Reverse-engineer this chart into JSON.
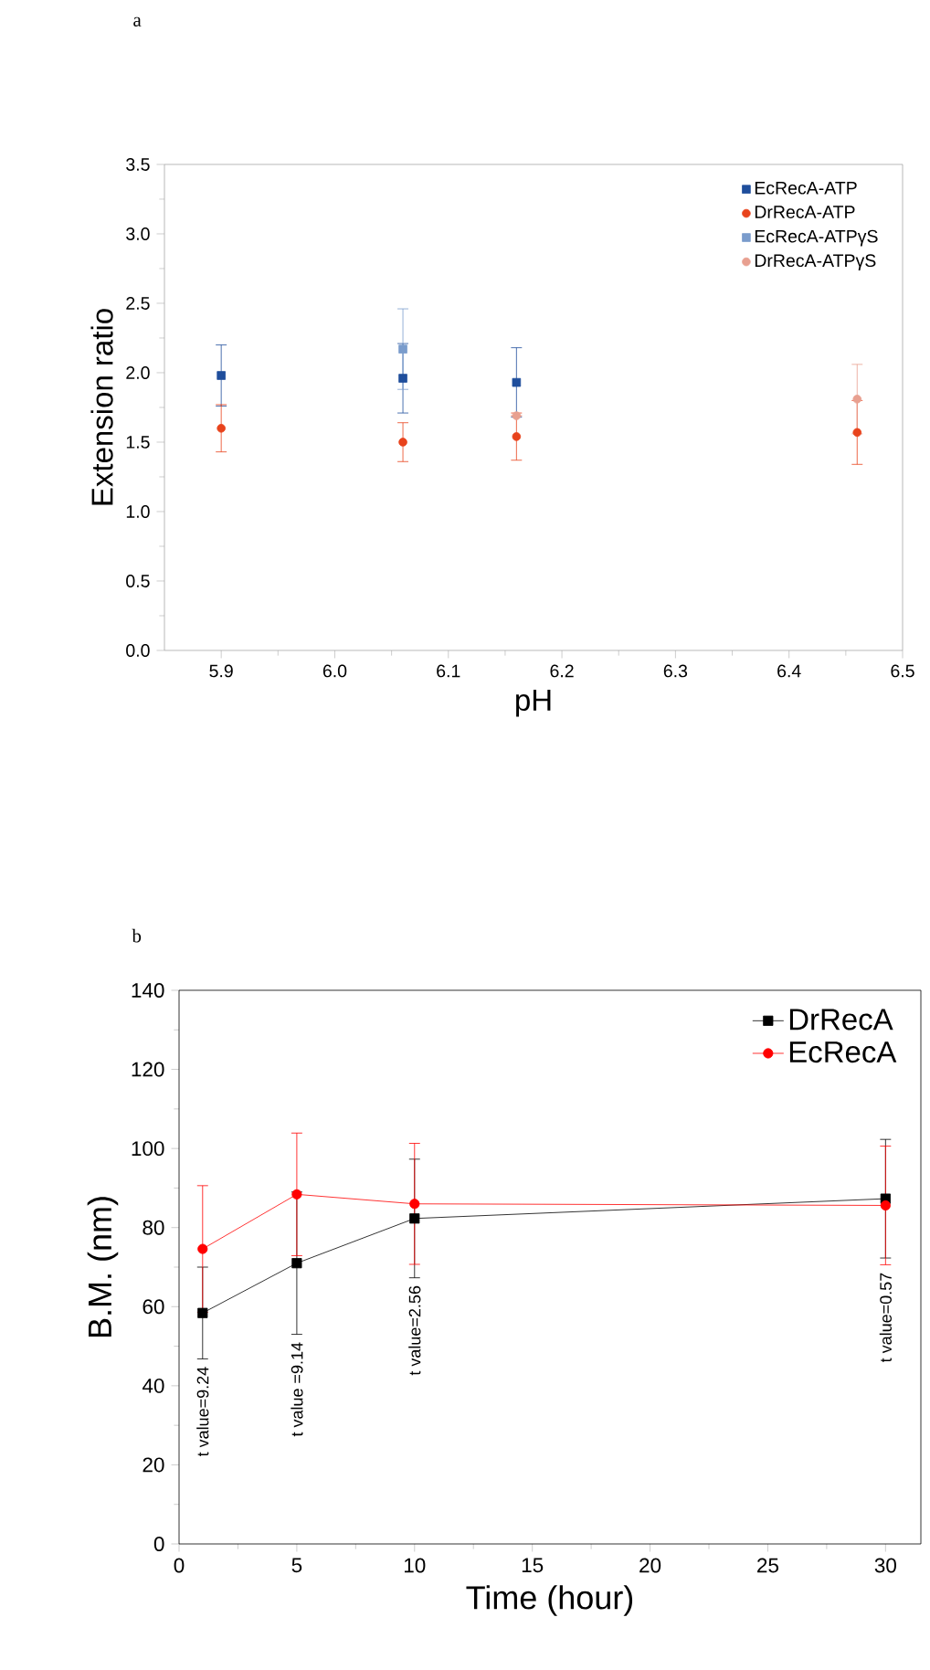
{
  "chart_data": [
    {
      "type": "scatter",
      "title": "a",
      "xlabel": "pH",
      "ylabel": "Extension ratio",
      "xlim": [
        5.85,
        6.5
      ],
      "ylim": [
        0,
        3.5
      ],
      "xticks": [
        5.9,
        {
          "value": 6.0,
          "label": "6.0"
        },
        6.1,
        6.2,
        6.3,
        6.4,
        6.5
      ],
      "yticks": [
        {
          "value": 0,
          "label": "0.0"
        },
        0.5,
        {
          "value": 1,
          "label": "1.0"
        },
        1.5,
        {
          "value": 2,
          "label": "2.0"
        },
        2.5,
        {
          "value": 3,
          "label": "3.0"
        },
        3.5
      ],
      "legend": "top right",
      "series": [
        {
          "name": "EcRecA-ATP",
          "color": "#1f4e9c",
          "marker": "square",
          "x": [
            5.9,
            6.06,
            6.16
          ],
          "values": [
            1.98,
            1.96,
            1.93
          ],
          "errors": [
            0.22,
            0.25,
            0.25
          ]
        },
        {
          "name": "DrRecA-ATP",
          "color": "#e8431c",
          "marker": "circle",
          "x": [
            5.9,
            6.06,
            6.16,
            6.46
          ],
          "values": [
            1.6,
            1.5,
            1.54,
            1.57
          ],
          "errors": [
            0.17,
            0.14,
            0.17,
            0.23
          ]
        },
        {
          "name": "EcRecA-ATPγS",
          "color": "#7a9ccc",
          "marker": "square",
          "x": [
            6.06
          ],
          "values": [
            2.17
          ],
          "errors": [
            0.29
          ]
        },
        {
          "name": "DrRecA-ATPγS",
          "color": "#e8a090",
          "marker": "circle",
          "x": [
            6.16,
            6.46
          ],
          "values": [
            1.69,
            1.81
          ],
          "errors": [
            null,
            0.25
          ]
        }
      ]
    },
    {
      "type": "line",
      "title": "b",
      "xlabel": "Time (hour)",
      "ylabel": "B.M. (nm)",
      "xlim": [
        0,
        31.5
      ],
      "ylim": [
        0,
        140
      ],
      "xticks": [
        0,
        5,
        10,
        15,
        20,
        25,
        30
      ],
      "yticks": [
        0,
        20,
        40,
        60,
        80,
        100,
        120,
        140
      ],
      "legend": "top right",
      "line_style": "solid",
      "x": [
        1,
        5,
        10,
        30
      ],
      "series": [
        {
          "name": "DrRecA",
          "color": "#000000",
          "marker": "square",
          "values": [
            58.4,
            71.0,
            82.3,
            87.3
          ],
          "errors": [
            11.6,
            18,
            15,
            15
          ]
        },
        {
          "name": "EcRecA",
          "color": "#ff0000",
          "marker": "circle",
          "values": [
            74.6,
            88.4,
            86.0,
            85.6
          ],
          "errors": [
            16,
            15.5,
            15.3,
            15
          ]
        }
      ],
      "annotations": [
        "t value=9.24",
        "t value =9.14",
        "t value=2.56",
        "t value=0.57"
      ]
    }
  ]
}
